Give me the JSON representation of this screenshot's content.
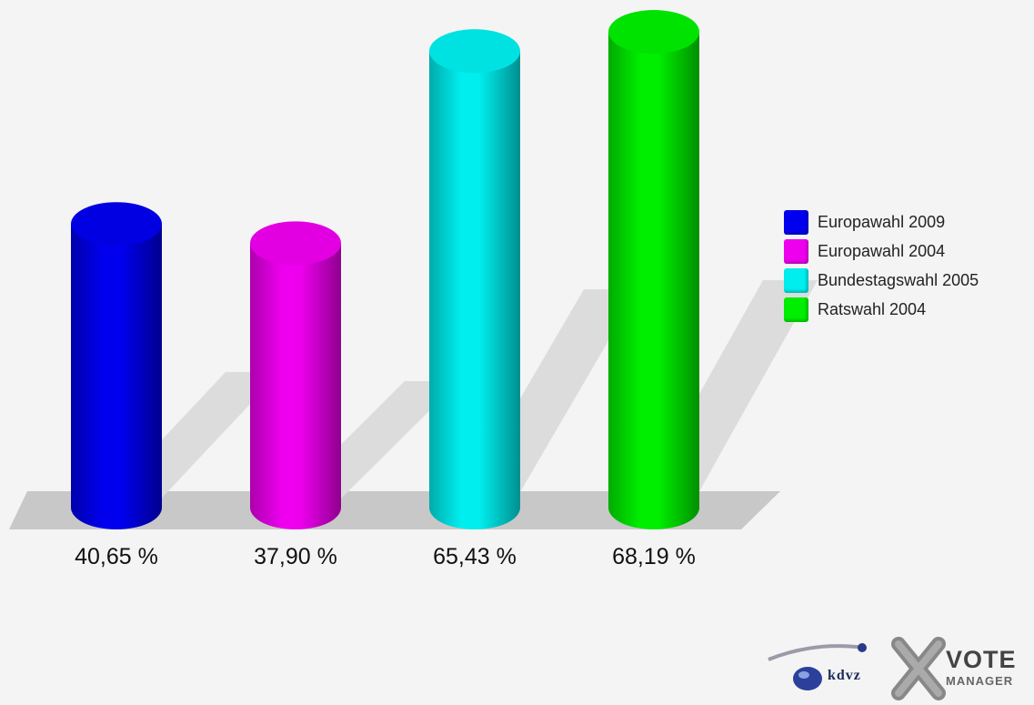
{
  "chart_data": {
    "type": "bar",
    "categories": [
      "Europawahl 2009",
      "Europawahl 2004",
      "Bundestagswahl 2005",
      "Ratswahl 2004"
    ],
    "values": [
      40.65,
      37.9,
      65.43,
      68.19
    ],
    "value_labels": [
      "40,65 %",
      "37,90 %",
      "65,43 %",
      "68,19 %"
    ],
    "colors": [
      "#0000ee",
      "#ee00ee",
      "#00eeee",
      "#00ee00"
    ],
    "style": "3d-cylinder",
    "legend_position": "right",
    "grid": false
  },
  "logo": {
    "kdvz_text": "kdvz",
    "vote_text": "VOTE",
    "manager_text": "MANAGER"
  }
}
